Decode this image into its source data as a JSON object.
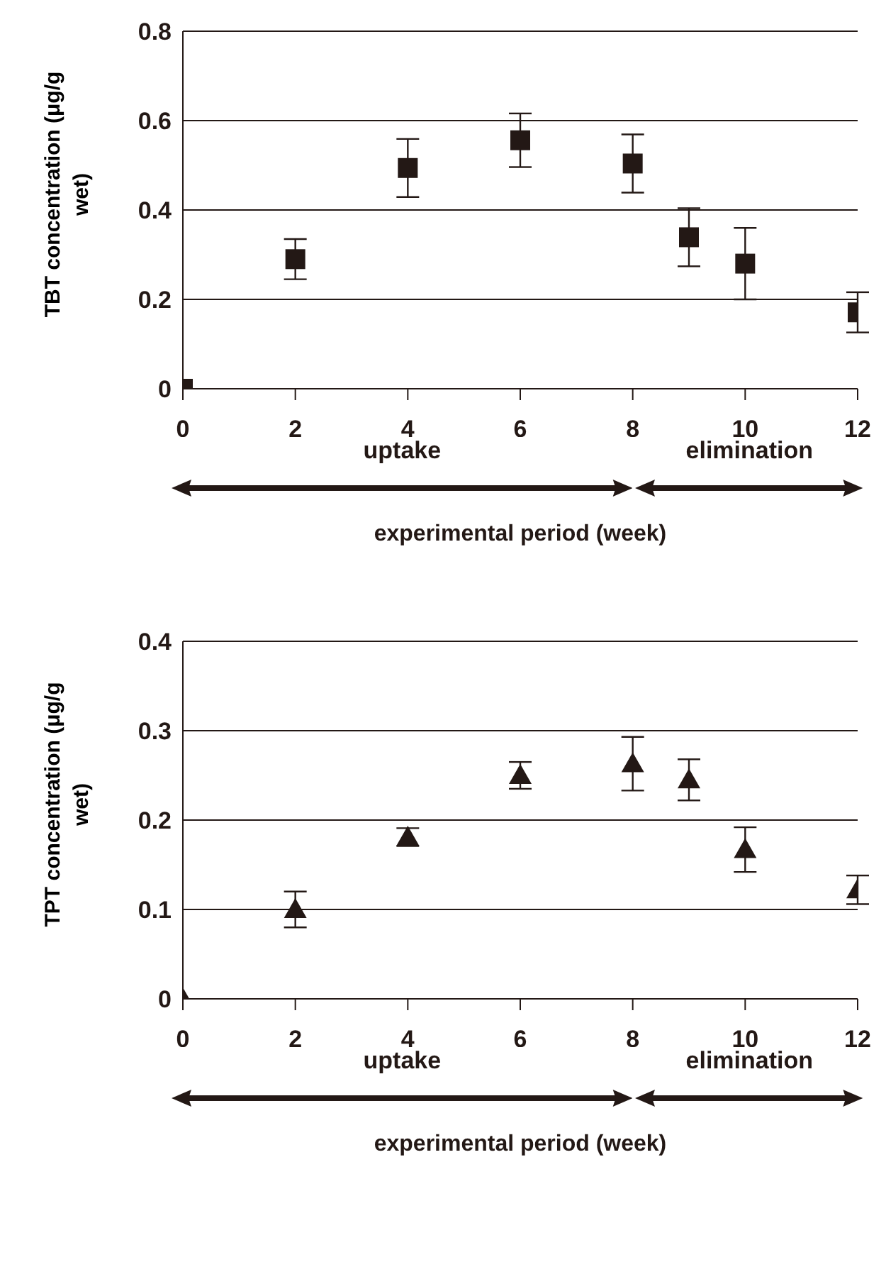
{
  "chart_data": [
    {
      "type": "scatter",
      "ylabel": "TBT concentration (μg/g wet)",
      "xlabel": "experimental period (week)",
      "annotations": [
        "uptake",
        "elimination"
      ],
      "x": [
        0,
        2,
        4,
        6,
        8,
        9,
        10,
        12
      ],
      "series": [
        {
          "color": "#231815",
          "values": [
            0,
            0.29,
            0.494,
            0.556,
            0.504,
            0.339,
            0.28,
            0.171
          ],
          "errors": [
            null,
            0.045,
            0.065,
            0.06,
            0.065,
            0.065,
            0.08,
            0.045
          ]
        }
      ],
      "xlim": [
        0,
        12
      ],
      "xticks": [
        0,
        2,
        4,
        6,
        8,
        10,
        12
      ],
      "ylim": [
        0,
        0.8
      ],
      "yticks": [
        0,
        0.2,
        0.4,
        0.6,
        0.8
      ],
      "grid": "y",
      "marker": "square"
    },
    {
      "type": "scatter",
      "ylabel": "TPT concentration (μg/g wet)",
      "xlabel": "experimental period (week)",
      "annotations": [
        "uptake",
        "elimination"
      ],
      "x": [
        0,
        2,
        4,
        6,
        8,
        9,
        10,
        12
      ],
      "series": [
        {
          "color": "#231815",
          "values": [
            0,
            0.1,
            0.181,
            0.25,
            0.263,
            0.245,
            0.167,
            0.122
          ],
          "errors": [
            null,
            0.02,
            0.01,
            0.015,
            0.03,
            0.023,
            0.025,
            0.016
          ]
        }
      ],
      "xlim": [
        0,
        12
      ],
      "xticks": [
        0,
        2,
        4,
        6,
        8,
        10,
        12
      ],
      "ylim": [
        0,
        0.4
      ],
      "yticks": [
        0,
        0.1,
        0.2,
        0.3,
        0.4
      ],
      "grid": "y",
      "marker": "triangle"
    }
  ]
}
